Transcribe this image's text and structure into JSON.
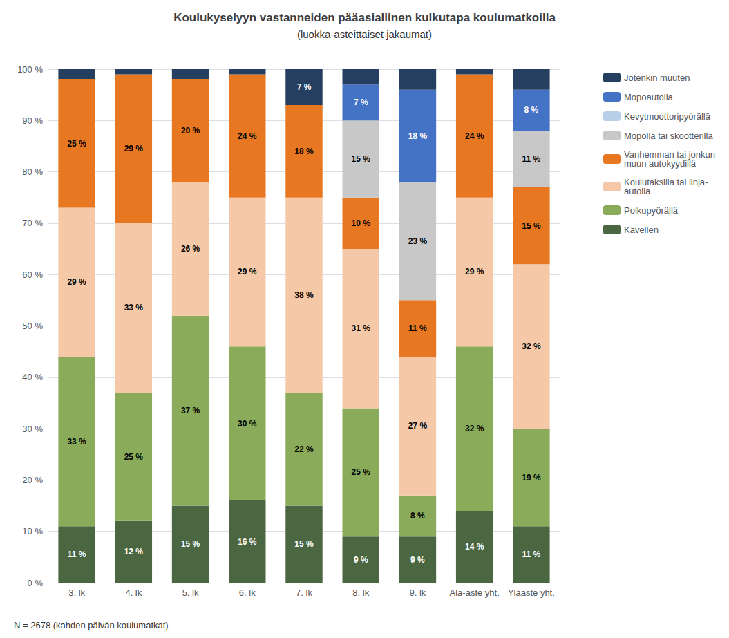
{
  "chart_data": {
    "type": "bar",
    "title": "Koulukyselyyn vastanneiden pääasiallinen kulkutapa koulumatkoilla",
    "subtitle": "(luokka-asteittaiset jakaumat)",
    "categories": [
      "3. lk",
      "4. lk",
      "5. lk",
      "6. lk",
      "7. lk",
      "8. lk",
      "9. lk",
      "Ala-aste yht.",
      "Yläaste yht."
    ],
    "series": [
      {
        "name": "Kävellen",
        "color": "#4a6741",
        "values": [
          11,
          12,
          15,
          16,
          15,
          9,
          9,
          14,
          11
        ],
        "value_labels": [
          "11 %",
          "12 %",
          "15 %",
          "16 %",
          "15 %",
          "9 %",
          "9 %",
          "14 %",
          "11 %"
        ]
      },
      {
        "name": "Polkupyörällä",
        "color": "#8aac5a",
        "values": [
          33,
          25,
          37,
          30,
          22,
          25,
          8,
          32,
          19
        ],
        "value_labels": [
          "33 %",
          "25 %",
          "37 %",
          "30 %",
          "22 %",
          "25 %",
          "8 %",
          "32 %",
          "19 %"
        ]
      },
      {
        "name": "Koulutaksilla tai linja-\nautolla",
        "color": "#f5c9a8",
        "values": [
          29,
          33,
          26,
          29,
          38,
          31,
          27,
          29,
          32
        ],
        "value_labels": [
          "29 %",
          "33 %",
          "26 %",
          "29 %",
          "38 %",
          "31 %",
          "27 %",
          "29 %",
          "32 %"
        ]
      },
      {
        "name": "Vanhemman tai jonkun\nmuun autokyydillä",
        "color": "#e87722",
        "values": [
          25,
          29,
          20,
          24,
          18,
          10,
          11,
          24,
          15
        ],
        "value_labels": [
          "25 %",
          "29 %",
          "20 %",
          "24 %",
          "18 %",
          "10 %",
          "11 %",
          "24 %",
          "15 %"
        ]
      },
      {
        "name": "Mopolla tai skootterilla",
        "color": "#c8c8c8",
        "values": [
          0,
          0,
          0,
          0,
          0,
          15,
          23,
          0,
          11
        ],
        "value_labels": [
          null,
          null,
          null,
          null,
          null,
          "15 %",
          "23 %",
          null,
          "11 %"
        ]
      },
      {
        "name": "Kevytmoottoripyörällä",
        "color": "#b8cfe8",
        "values": [
          0,
          0,
          0,
          0,
          0,
          0,
          0,
          0,
          0
        ],
        "value_labels": [
          null,
          null,
          null,
          null,
          null,
          null,
          null,
          null,
          null
        ]
      },
      {
        "name": "Mopoautolla",
        "color": "#4472c4",
        "values": [
          0,
          0,
          0,
          0,
          0,
          7,
          18,
          0,
          8
        ],
        "value_labels": [
          null,
          null,
          null,
          null,
          null,
          "7 %",
          "18 %",
          null,
          "8 %"
        ]
      },
      {
        "name": "Jotenkin muuten",
        "color": "#243f60",
        "values": [
          2,
          1,
          2,
          1,
          7,
          3,
          4,
          1,
          4
        ],
        "value_labels": [
          null,
          null,
          null,
          null,
          "7 %",
          null,
          null,
          null,
          null
        ]
      }
    ],
    "ylim": [
      0,
      100
    ],
    "yticks": [
      {
        "value": 0,
        "label": "0 %"
      },
      {
        "value": 10,
        "label": "10 %"
      },
      {
        "value": 20,
        "label": "20 %"
      },
      {
        "value": 30,
        "label": "30 %"
      },
      {
        "value": 40,
        "label": "40 %"
      },
      {
        "value": 50,
        "label": "50 %"
      },
      {
        "value": 60,
        "label": "60 %"
      },
      {
        "value": 70,
        "label": "70 %"
      },
      {
        "value": 80,
        "label": "80 %"
      },
      {
        "value": 90,
        "label": "90 %"
      },
      {
        "value": 100,
        "label": "100 %"
      }
    ],
    "stacked": true,
    "data_labels": true,
    "grid": true,
    "legend": "right",
    "annotations": [
      "N = 2678 (kahden päivän koulumatkat)"
    ]
  }
}
